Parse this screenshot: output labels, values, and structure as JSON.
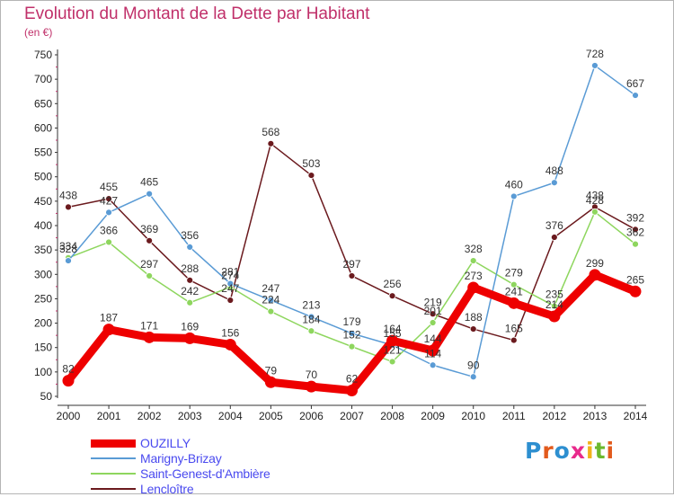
{
  "title": "Evolution du Montant de la Dette par Habitant",
  "unit_label": "(en €)",
  "logo": {
    "text": "Proxiti",
    "colors": [
      "#2d8fd0",
      "#e25a1c",
      "#2d8fd0",
      "#e82a8c",
      "#f2b21a",
      "#6bb82e",
      "#e25a1c"
    ]
  },
  "chart_data": {
    "type": "line",
    "title": "Evolution du Montant de la Dette par Habitant",
    "subtitle": "(en €)",
    "x": [
      2000,
      2001,
      2002,
      2003,
      2004,
      2005,
      2006,
      2007,
      2008,
      2009,
      2010,
      2011,
      2012,
      2013,
      2014
    ],
    "ylim": [
      50,
      750
    ],
    "yticks": [
      50,
      100,
      150,
      200,
      250,
      300,
      350,
      400,
      450,
      500,
      550,
      600,
      650,
      700,
      750
    ],
    "grid": "none",
    "legend_position": "bottom-left",
    "series": [
      {
        "name": "Lencloître",
        "color": "#6b1a1e",
        "values": [
          438,
          455,
          369,
          288,
          247,
          568,
          503,
          297,
          256,
          219,
          188,
          165,
          376,
          438,
          392
        ]
      },
      {
        "name": "Saint-Genest-d'Ambière",
        "color": "#8ed65e",
        "values": [
          334,
          366,
          297,
          242,
          274,
          224,
          184,
          152,
          121,
          201,
          328,
          279,
          235,
          428,
          362
        ]
      },
      {
        "name": "Marigny-Brizay",
        "color": "#5a9bd5",
        "values": [
          328,
          427,
          465,
          356,
          281,
          247,
          213,
          179,
          155,
          114,
          90,
          460,
          488,
          728,
          667
        ]
      },
      {
        "name": "OUZILLY",
        "color": "#ee0000",
        "values": [
          82,
          187,
          171,
          169,
          156,
          79,
          70,
          62,
          164,
          144,
          273,
          241,
          214,
          299,
          265
        ]
      }
    ],
    "data_labels": [
      [
        "438",
        "455",
        "369",
        "288",
        "247",
        "568",
        "503",
        "297",
        "256",
        "219",
        "188",
        "165",
        "376",
        "438",
        "392"
      ],
      [
        "334",
        "366",
        "297",
        "242",
        "274",
        "224",
        "184",
        "152",
        "121",
        "201",
        "328",
        "279",
        "235",
        "428",
        "362"
      ],
      [
        "328",
        "427",
        "465",
        "356",
        "281",
        "247",
        "213",
        "179",
        "155",
        "114",
        "90",
        "460",
        "488",
        "728",
        "667"
      ],
      [
        "82",
        "187",
        "171",
        "169",
        "156",
        "79",
        "70",
        "62",
        "164",
        "144",
        "273",
        "241",
        "214",
        "299",
        "265"
      ]
    ]
  },
  "legend": {
    "items": [
      {
        "label": "OUZILLY",
        "color": "#ee0000",
        "thickness": 9
      },
      {
        "label": "Marigny-Brizay",
        "color": "#5a9bd5",
        "thickness": 2
      },
      {
        "label": "Saint-Genest-d'Ambière",
        "color": "#8ed65e",
        "thickness": 2
      },
      {
        "label": "Lencloître",
        "color": "#6b1a1e",
        "thickness": 2
      }
    ],
    "label_color": "#4a4aef"
  }
}
